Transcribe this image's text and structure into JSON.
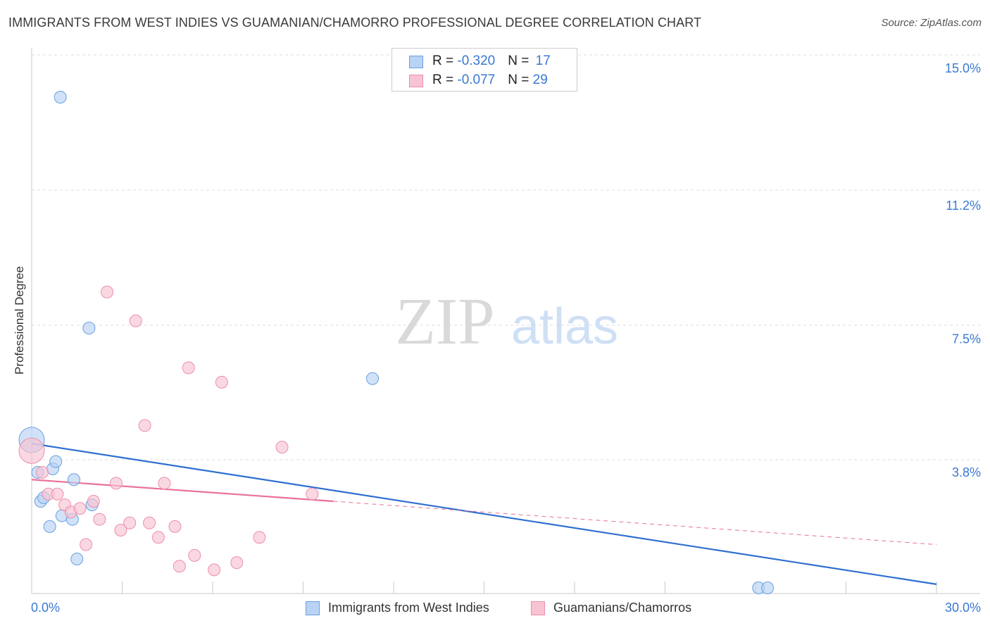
{
  "title": "IMMIGRANTS FROM WEST INDIES VS GUAMANIAN/CHAMORRO PROFESSIONAL DEGREE CORRELATION CHART",
  "source": "Source: ZipAtlas.com",
  "watermark": {
    "zip": "ZIP",
    "atlas": "atlas"
  },
  "colors": {
    "blue_fill": "#b9d3f5",
    "blue_stroke": "#6a9fe0",
    "blue_line": "#2e6fd0",
    "pink_fill": "#f8c3d3",
    "pink_stroke": "#ec8fac",
    "pink_line": "#e8719a",
    "axis_text": "#3a78d4",
    "grid": "#dddddd"
  },
  "legend": {
    "rows": [
      {
        "r_label": "R = ",
        "r_value": "-0.320",
        "n_label": "N = ",
        "n_value": "17"
      },
      {
        "r_label": "R = ",
        "r_value": "-0.077",
        "n_label": "N = ",
        "n_value": "29"
      }
    ]
  },
  "chart_data": {
    "type": "scatter",
    "title": "IMMIGRANTS FROM WEST INDIES VS GUAMANIAN/CHAMORRO PROFESSIONAL DEGREE CORRELATION CHART",
    "xlabel": "",
    "ylabel": "Professional Degree",
    "xlim": [
      0,
      30
    ],
    "ylim": [
      0,
      15.6
    ],
    "x_tick_labels": [
      {
        "value": 0,
        "label": "0.0%"
      },
      {
        "value": 30,
        "label": "30.0%"
      }
    ],
    "y_tick_labels": [
      {
        "value": 3.8,
        "label": "3.8%"
      },
      {
        "value": 7.5,
        "label": "7.5%"
      },
      {
        "value": 11.2,
        "label": "11.2%"
      },
      {
        "value": 15.0,
        "label": "15.0%"
      }
    ],
    "grid": true,
    "legend_position": "top-center",
    "series": [
      {
        "name": "Immigrants from West Indies",
        "color": "blue",
        "trend": {
          "x0": 0,
          "y0": 4.6,
          "x1": 30,
          "y1": 0.7,
          "dashed_from": null
        },
        "points": [
          {
            "x": 0.0,
            "y": 4.7,
            "big": true
          },
          {
            "x": 0.2,
            "y": 3.8
          },
          {
            "x": 0.3,
            "y": 3.0
          },
          {
            "x": 0.4,
            "y": 3.1
          },
          {
            "x": 0.6,
            "y": 2.3
          },
          {
            "x": 0.7,
            "y": 3.9
          },
          {
            "x": 0.8,
            "y": 4.1
          },
          {
            "x": 0.95,
            "y": 14.2
          },
          {
            "x": 1.0,
            "y": 2.6
          },
          {
            "x": 1.35,
            "y": 2.5
          },
          {
            "x": 1.4,
            "y": 3.6
          },
          {
            "x": 1.5,
            "y": 1.4
          },
          {
            "x": 1.9,
            "y": 7.8
          },
          {
            "x": 2.0,
            "y": 2.9
          },
          {
            "x": 11.3,
            "y": 6.4
          },
          {
            "x": 24.1,
            "y": 0.6
          },
          {
            "x": 24.4,
            "y": 0.6
          }
        ]
      },
      {
        "name": "Guamanians/Chamorros",
        "color": "pink",
        "trend": {
          "x0": 0,
          "y0": 3.6,
          "x1": 10,
          "y1": 3.0,
          "dashed_to": 30,
          "dashed_y": 1.8
        },
        "points": [
          {
            "x": 0.0,
            "y": 4.4,
            "big": true
          },
          {
            "x": 0.35,
            "y": 3.8
          },
          {
            "x": 0.55,
            "y": 3.2
          },
          {
            "x": 0.85,
            "y": 3.2
          },
          {
            "x": 1.1,
            "y": 2.9
          },
          {
            "x": 1.3,
            "y": 2.7
          },
          {
            "x": 1.6,
            "y": 2.8
          },
          {
            "x": 1.8,
            "y": 1.8
          },
          {
            "x": 2.05,
            "y": 3.0
          },
          {
            "x": 2.25,
            "y": 2.5
          },
          {
            "x": 2.5,
            "y": 8.8
          },
          {
            "x": 2.8,
            "y": 3.5
          },
          {
            "x": 2.95,
            "y": 2.2
          },
          {
            "x": 3.25,
            "y": 2.4
          },
          {
            "x": 3.45,
            "y": 8.0
          },
          {
            "x": 3.75,
            "y": 5.1
          },
          {
            "x": 3.9,
            "y": 2.4
          },
          {
            "x": 4.2,
            "y": 2.0
          },
          {
            "x": 4.4,
            "y": 3.5
          },
          {
            "x": 4.75,
            "y": 2.3
          },
          {
            "x": 4.9,
            "y": 1.2
          },
          {
            "x": 5.2,
            "y": 6.7
          },
          {
            "x": 5.4,
            "y": 1.5
          },
          {
            "x": 6.05,
            "y": 1.1
          },
          {
            "x": 6.3,
            "y": 6.3
          },
          {
            "x": 6.8,
            "y": 1.3
          },
          {
            "x": 7.55,
            "y": 2.0
          },
          {
            "x": 8.3,
            "y": 4.5
          },
          {
            "x": 9.3,
            "y": 3.2
          }
        ]
      }
    ]
  }
}
